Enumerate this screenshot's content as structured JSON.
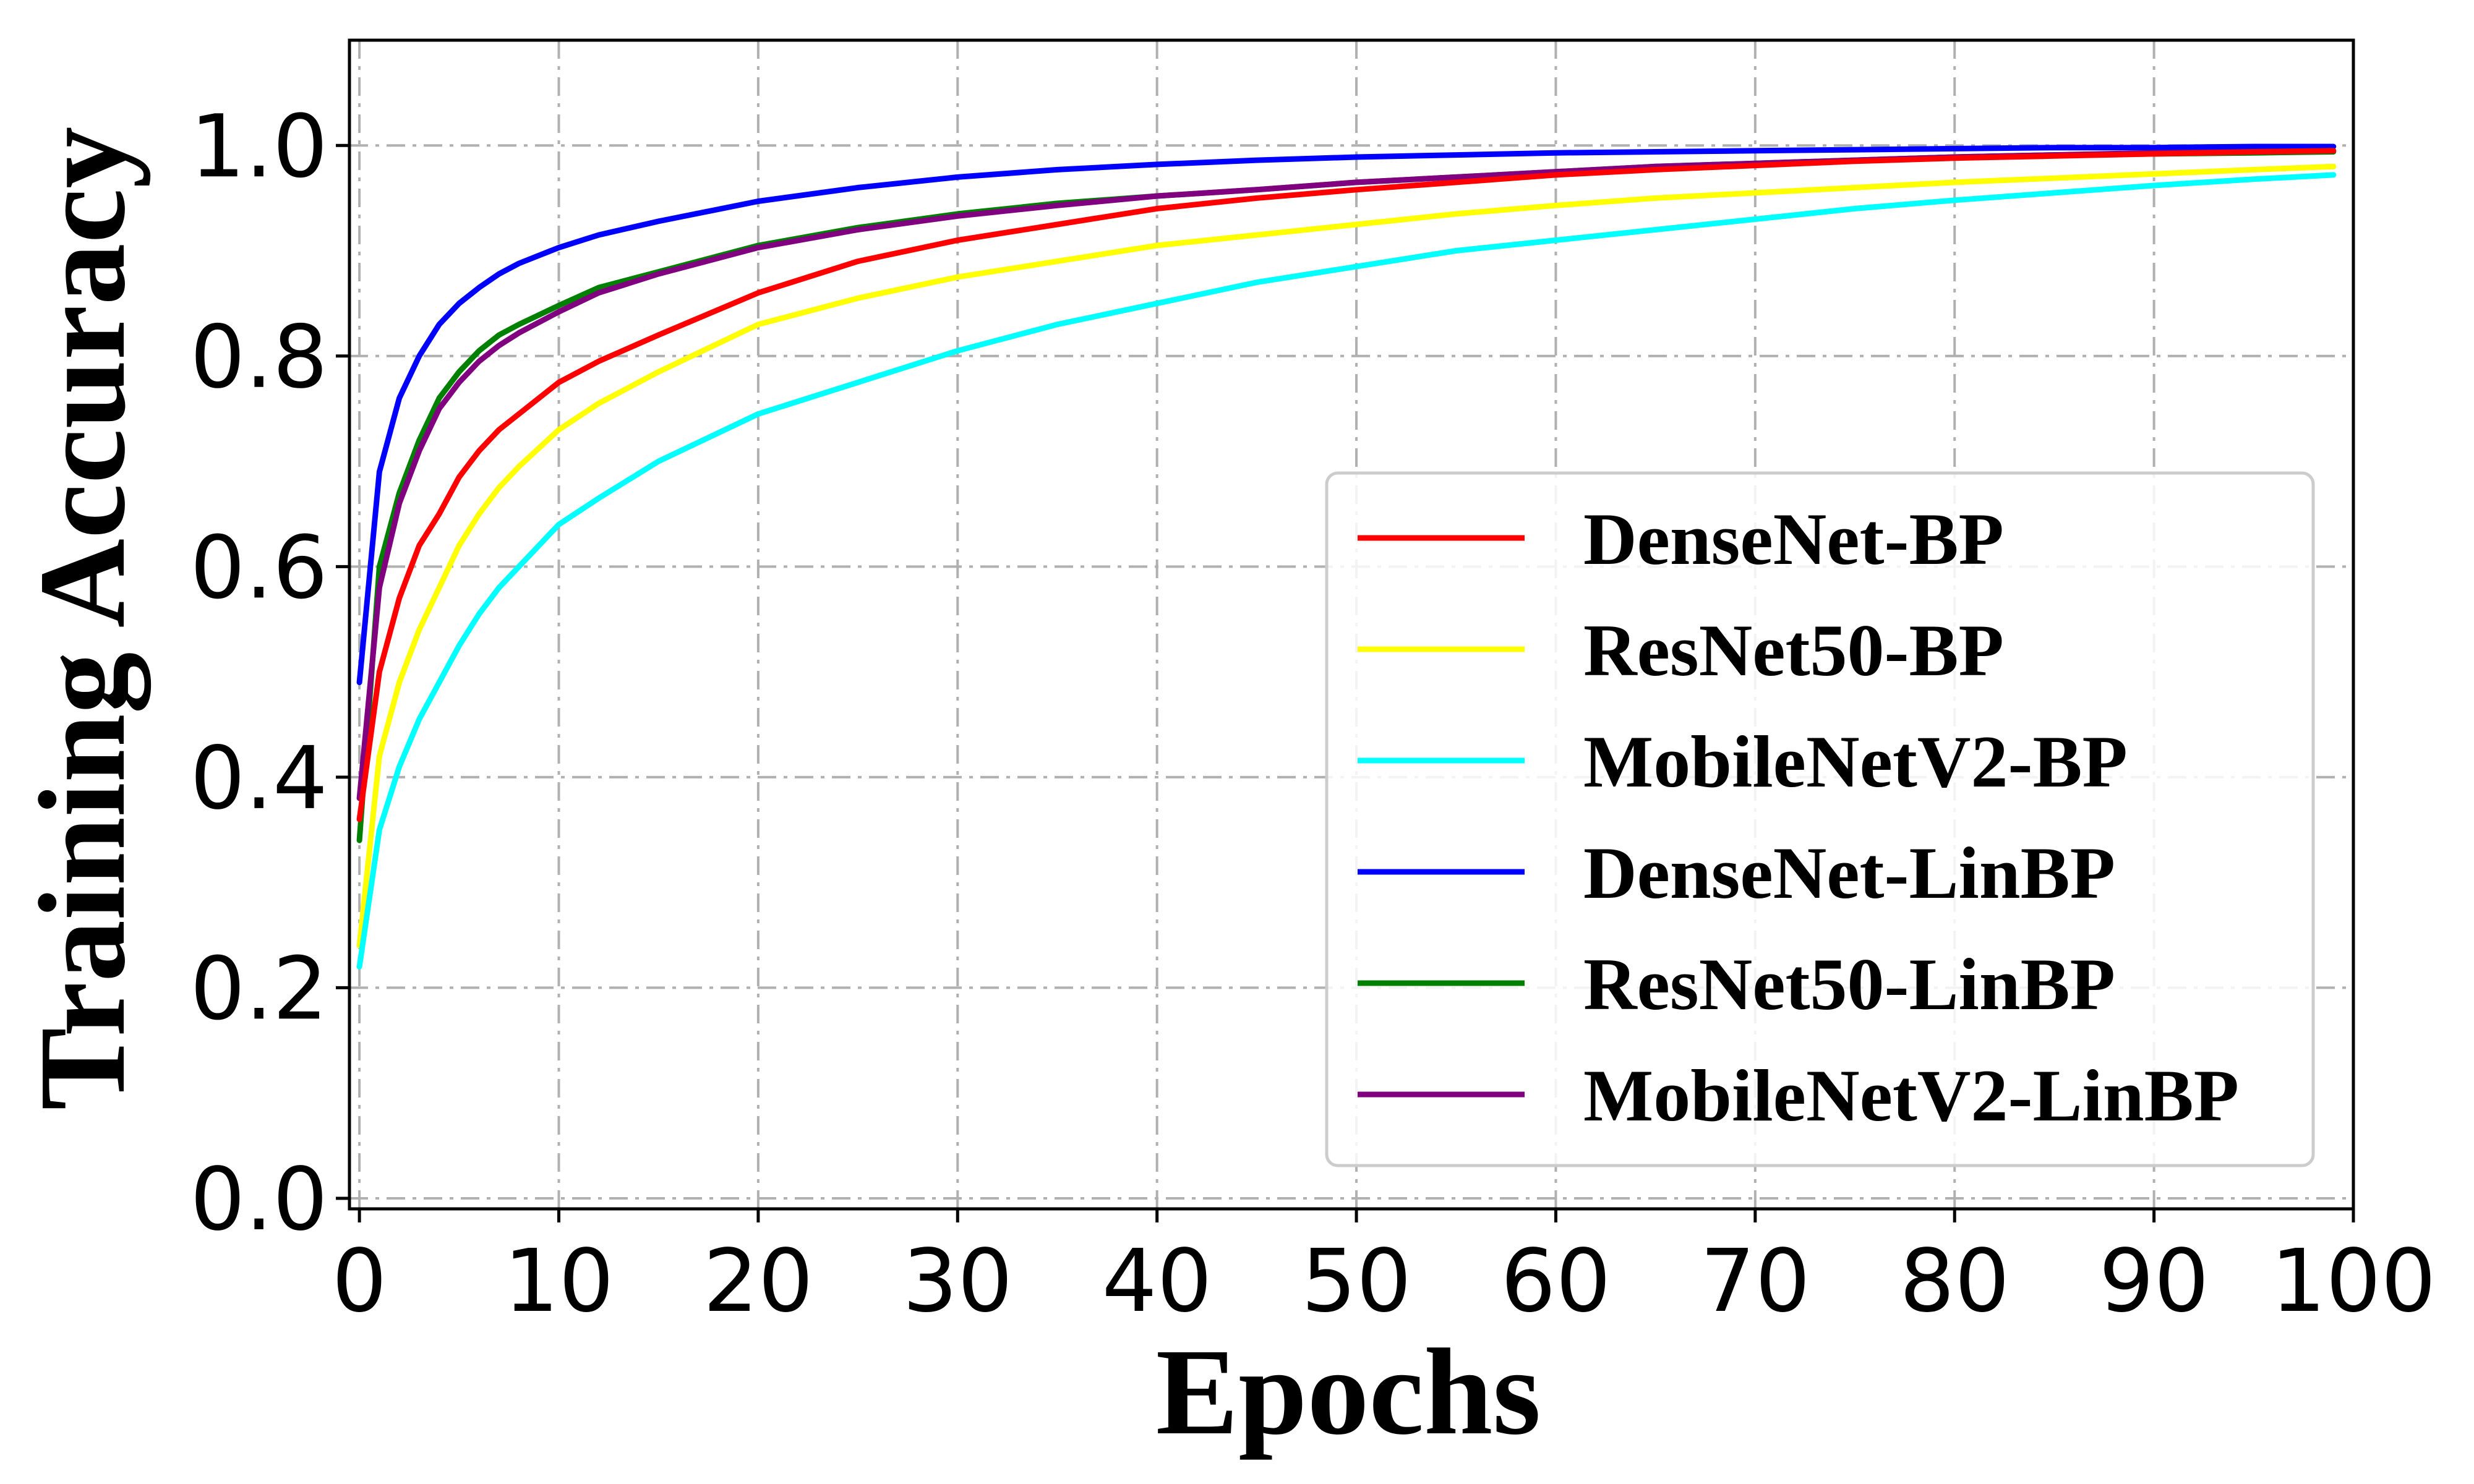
{
  "chart_data": {
    "type": "line",
    "xlabel": "Epochs",
    "ylabel": "Training Accuracy",
    "xlim": [
      -0.5,
      100
    ],
    "ylim": [
      -0.01,
      1.1
    ],
    "xticks": [
      0,
      10,
      20,
      30,
      40,
      50,
      60,
      70,
      80,
      90,
      100
    ],
    "yticks": [
      0.0,
      0.2,
      0.4,
      0.6,
      0.8,
      1.0
    ],
    "xtick_labels": [
      "0",
      "10",
      "20",
      "30",
      "40",
      "50",
      "60",
      "70",
      "80",
      "90",
      "100"
    ],
    "ytick_labels": [
      "0.0",
      "0.2",
      "0.4",
      "0.6",
      "0.8",
      "1.0"
    ],
    "grid": true,
    "legend_position": "lower-right",
    "x": [
      0,
      1,
      2,
      3,
      4,
      5,
      6,
      7,
      8,
      10,
      12,
      15,
      20,
      25,
      30,
      35,
      40,
      45,
      50,
      55,
      60,
      65,
      70,
      75,
      80,
      85,
      90,
      95,
      99
    ],
    "series": [
      {
        "name": "DenseNet-BP",
        "color": "#ff0000",
        "values": [
          0.36,
          0.5,
          0.57,
          0.62,
          0.65,
          0.685,
          0.71,
          0.73,
          0.745,
          0.775,
          0.795,
          0.82,
          0.86,
          0.89,
          0.91,
          0.925,
          0.94,
          0.95,
          0.958,
          0.965,
          0.972,
          0.977,
          0.981,
          0.985,
          0.988,
          0.99,
          0.992,
          0.994,
          0.995
        ]
      },
      {
        "name": "ResNet50-BP",
        "color": "#ffff00",
        "values": [
          0.24,
          0.42,
          0.49,
          0.54,
          0.58,
          0.62,
          0.65,
          0.675,
          0.695,
          0.73,
          0.755,
          0.785,
          0.83,
          0.855,
          0.875,
          0.89,
          0.905,
          0.915,
          0.925,
          0.935,
          0.943,
          0.95,
          0.955,
          0.96,
          0.965,
          0.969,
          0.973,
          0.977,
          0.98
        ]
      },
      {
        "name": "MobileNetV2-BP",
        "color": "#00ffff",
        "values": [
          0.22,
          0.35,
          0.41,
          0.455,
          0.49,
          0.525,
          0.555,
          0.58,
          0.6,
          0.64,
          0.665,
          0.7,
          0.745,
          0.775,
          0.805,
          0.83,
          0.85,
          0.87,
          0.885,
          0.9,
          0.91,
          0.92,
          0.93,
          0.94,
          0.948,
          0.955,
          0.962,
          0.968,
          0.972
        ]
      },
      {
        "name": "DenseNet-LinBP",
        "color": "#0000ff",
        "values": [
          0.49,
          0.69,
          0.76,
          0.8,
          0.83,
          0.85,
          0.865,
          0.878,
          0.888,
          0.903,
          0.915,
          0.928,
          0.947,
          0.96,
          0.97,
          0.977,
          0.982,
          0.986,
          0.989,
          0.991,
          0.993,
          0.994,
          0.995,
          0.996,
          0.997,
          0.998,
          0.998,
          0.999,
          0.999
        ]
      },
      {
        "name": "ResNet50-LinBP",
        "color": "#008000",
        "values": [
          0.34,
          0.6,
          0.67,
          0.72,
          0.76,
          0.785,
          0.805,
          0.82,
          0.83,
          0.848,
          0.865,
          0.88,
          0.905,
          0.922,
          0.935,
          0.945,
          0.952,
          0.958,
          0.965,
          0.97,
          0.975,
          0.98,
          0.983,
          0.986,
          0.989,
          0.991,
          0.992,
          0.993,
          0.994
        ]
      },
      {
        "name": "MobileNetV2-LinBP",
        "color": "#800080",
        "values": [
          0.38,
          0.58,
          0.66,
          0.71,
          0.75,
          0.775,
          0.795,
          0.81,
          0.822,
          0.842,
          0.86,
          0.878,
          0.903,
          0.92,
          0.933,
          0.943,
          0.952,
          0.958,
          0.965,
          0.97,
          0.975,
          0.98,
          0.983,
          0.986,
          0.989,
          0.991,
          0.993,
          0.994,
          0.995
        ]
      }
    ]
  }
}
